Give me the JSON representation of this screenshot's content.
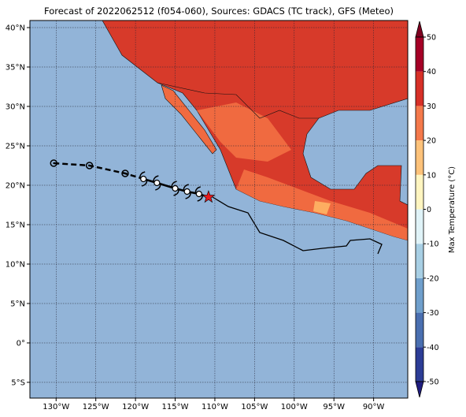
{
  "chart_data": {
    "type": "map",
    "title": "Forecast of 2022062512 (f054-060), Sources: GDACS (TC track), GFS (Meteo)",
    "xlim": [
      -133.3,
      -85.7
    ],
    "ylim": [
      -7,
      40.9
    ],
    "xticks": [
      {
        "value": -130,
        "label": "130°W"
      },
      {
        "value": -125,
        "label": "125°W"
      },
      {
        "value": -120,
        "label": "120°W"
      },
      {
        "value": -115,
        "label": "115°W"
      },
      {
        "value": -110,
        "label": "110°W"
      },
      {
        "value": -105,
        "label": "105°W"
      },
      {
        "value": -100,
        "label": "100°W"
      },
      {
        "value": -95,
        "label": "95°W"
      },
      {
        "value": -90,
        "label": "90°W"
      }
    ],
    "yticks": [
      {
        "value": -5,
        "label": "5°S"
      },
      {
        "value": 0,
        "label": "0°"
      },
      {
        "value": 5,
        "label": "5°N"
      },
      {
        "value": 10,
        "label": "10°N"
      },
      {
        "value": 15,
        "label": "15°N"
      },
      {
        "value": 20,
        "label": "20°N"
      },
      {
        "value": 25,
        "label": "25°N"
      },
      {
        "value": 30,
        "label": "30°N"
      },
      {
        "value": 35,
        "label": "35°N"
      },
      {
        "value": 40,
        "label": "40°N"
      }
    ],
    "grid": true,
    "track": {
      "past_lon": [
        -130.3,
        -125.8,
        -121.3
      ],
      "past_lat": [
        22.8,
        22.5,
        21.5
      ],
      "forecast_lon": [
        -119.0,
        -117.3,
        -115.0,
        -113.5,
        -112.0
      ],
      "forecast_lat": [
        20.8,
        20.3,
        19.6,
        19.2,
        18.9
      ],
      "current": [
        -110.8,
        18.5
      ]
    },
    "colorbar": {
      "label": "Max Temperature (°C)",
      "lim": [
        -50,
        50
      ],
      "ticks": [
        -50,
        -40,
        -30,
        -20,
        -10,
        0,
        10,
        20,
        30,
        40,
        50
      ],
      "colors": [
        "#2c3d96",
        "#4a6fb0",
        "#6f9fcc",
        "#a8cfe4",
        "#e0f3f8",
        "#fff5c0",
        "#fdc27a",
        "#f4794b",
        "#d73027",
        "#a50026"
      ],
      "under": "#1f1d80",
      "over": "#7f0020"
    }
  }
}
